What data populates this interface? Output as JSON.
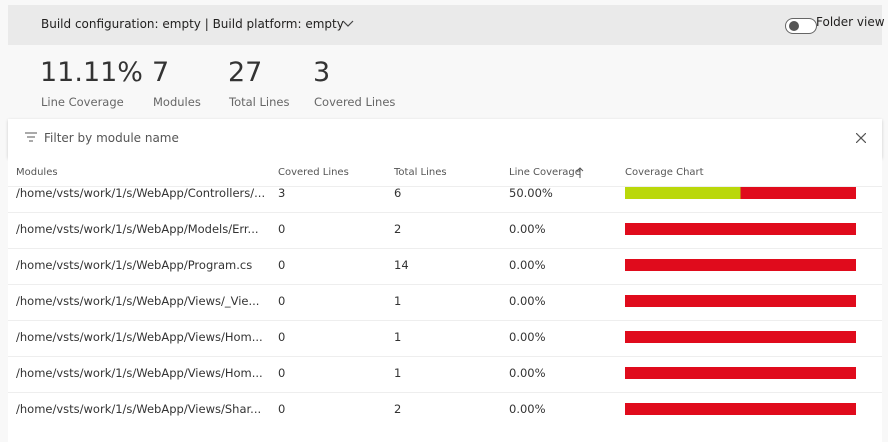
{
  "header": {
    "build_selector": "Build configuration: empty | Build platform: empty",
    "folder_view": "Folder view"
  },
  "summary": [
    {
      "value": "11.11%",
      "label": "Line Coverage"
    },
    {
      "value": "7",
      "label": "Modules"
    },
    {
      "value": "27",
      "label": "Total Lines"
    },
    {
      "value": "3",
      "label": "Covered Lines"
    }
  ],
  "filter": {
    "placeholder": "Filter by module name"
  },
  "table": {
    "columns": [
      "Modules",
      "Covered Lines",
      "Total Lines",
      "Line Coverage",
      "Coverage Chart"
    ],
    "rows": [
      {
        "module": "/home/vsts/work/1/s/WebApp/Controllers/...",
        "covered": 3,
        "total": 6,
        "coverage": "50.00%"
      },
      {
        "module": "/home/vsts/work/1/s/WebApp/Models/Err...",
        "covered": 0,
        "total": 2,
        "coverage": "0.00%"
      },
      {
        "module": "/home/vsts/work/1/s/WebApp/Program.cs",
        "covered": 0,
        "total": 14,
        "coverage": "0.00%"
      },
      {
        "module": "/home/vsts/work/1/s/WebApp/Views/_Vie...",
        "covered": 0,
        "total": 1,
        "coverage": "0.00%"
      },
      {
        "module": "/home/vsts/work/1/s/WebApp/Views/Hom...",
        "covered": 0,
        "total": 1,
        "coverage": "0.00%"
      },
      {
        "module": "/home/vsts/work/1/s/WebApp/Views/Hom...",
        "covered": 0,
        "total": 1,
        "coverage": "0.00%"
      },
      {
        "module": "/home/vsts/work/1/s/WebApp/Views/Shar...",
        "covered": 0,
        "total": 2,
        "coverage": "0.00%"
      }
    ]
  }
}
